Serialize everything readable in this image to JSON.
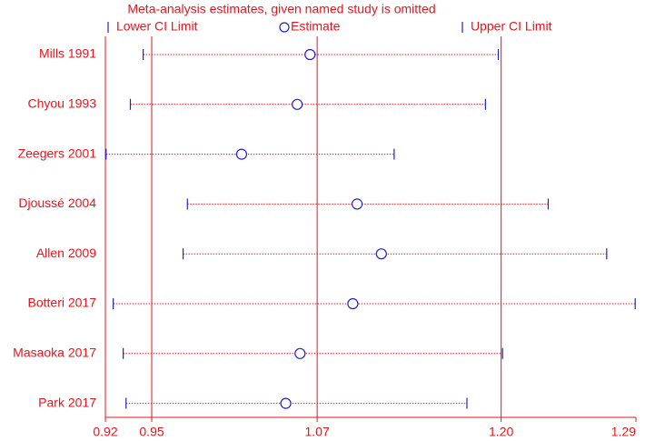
{
  "chart_data": {
    "type": "sensitivity",
    "title": "Meta-analysis estimates, given named study is omitted",
    "categories": [
      "Mills 1991",
      "Chyou 1993",
      "Zeegers 2001",
      "Djoussé 2004",
      "Allen 2009",
      "Botteri 2017",
      "Masaoka 2017",
      "Park 2017"
    ],
    "series": [
      {
        "name": "Lower CI Limit",
        "color": "#2020d0",
        "values": [
          0.946,
          0.937,
          0.92,
          0.977,
          0.974,
          0.925,
          0.932,
          0.934
        ]
      },
      {
        "name": "Estimate",
        "color": "#2020d0",
        "values": [
          1.063,
          1.054,
          1.015,
          1.096,
          1.113,
          1.093,
          1.056,
          1.046
        ]
      },
      {
        "name": "Upper CI Limit",
        "color": "#2020d0",
        "values": [
          1.195,
          1.186,
          1.122,
          1.23,
          1.271,
          1.291,
          1.198,
          1.173
        ]
      }
    ],
    "xlim": [
      0.9195,
      1.2915
    ],
    "xticks": [
      {
        "value": 0.9195,
        "label": "0.92"
      },
      {
        "value": 0.952,
        "label": "0.95"
      },
      {
        "value": 1.068,
        "label": "1.07"
      },
      {
        "value": 1.197,
        "label": "1.20"
      },
      {
        "value": 1.2915,
        "label": "1.29"
      }
    ],
    "grid": true,
    "line_color": "#e8141c"
  }
}
